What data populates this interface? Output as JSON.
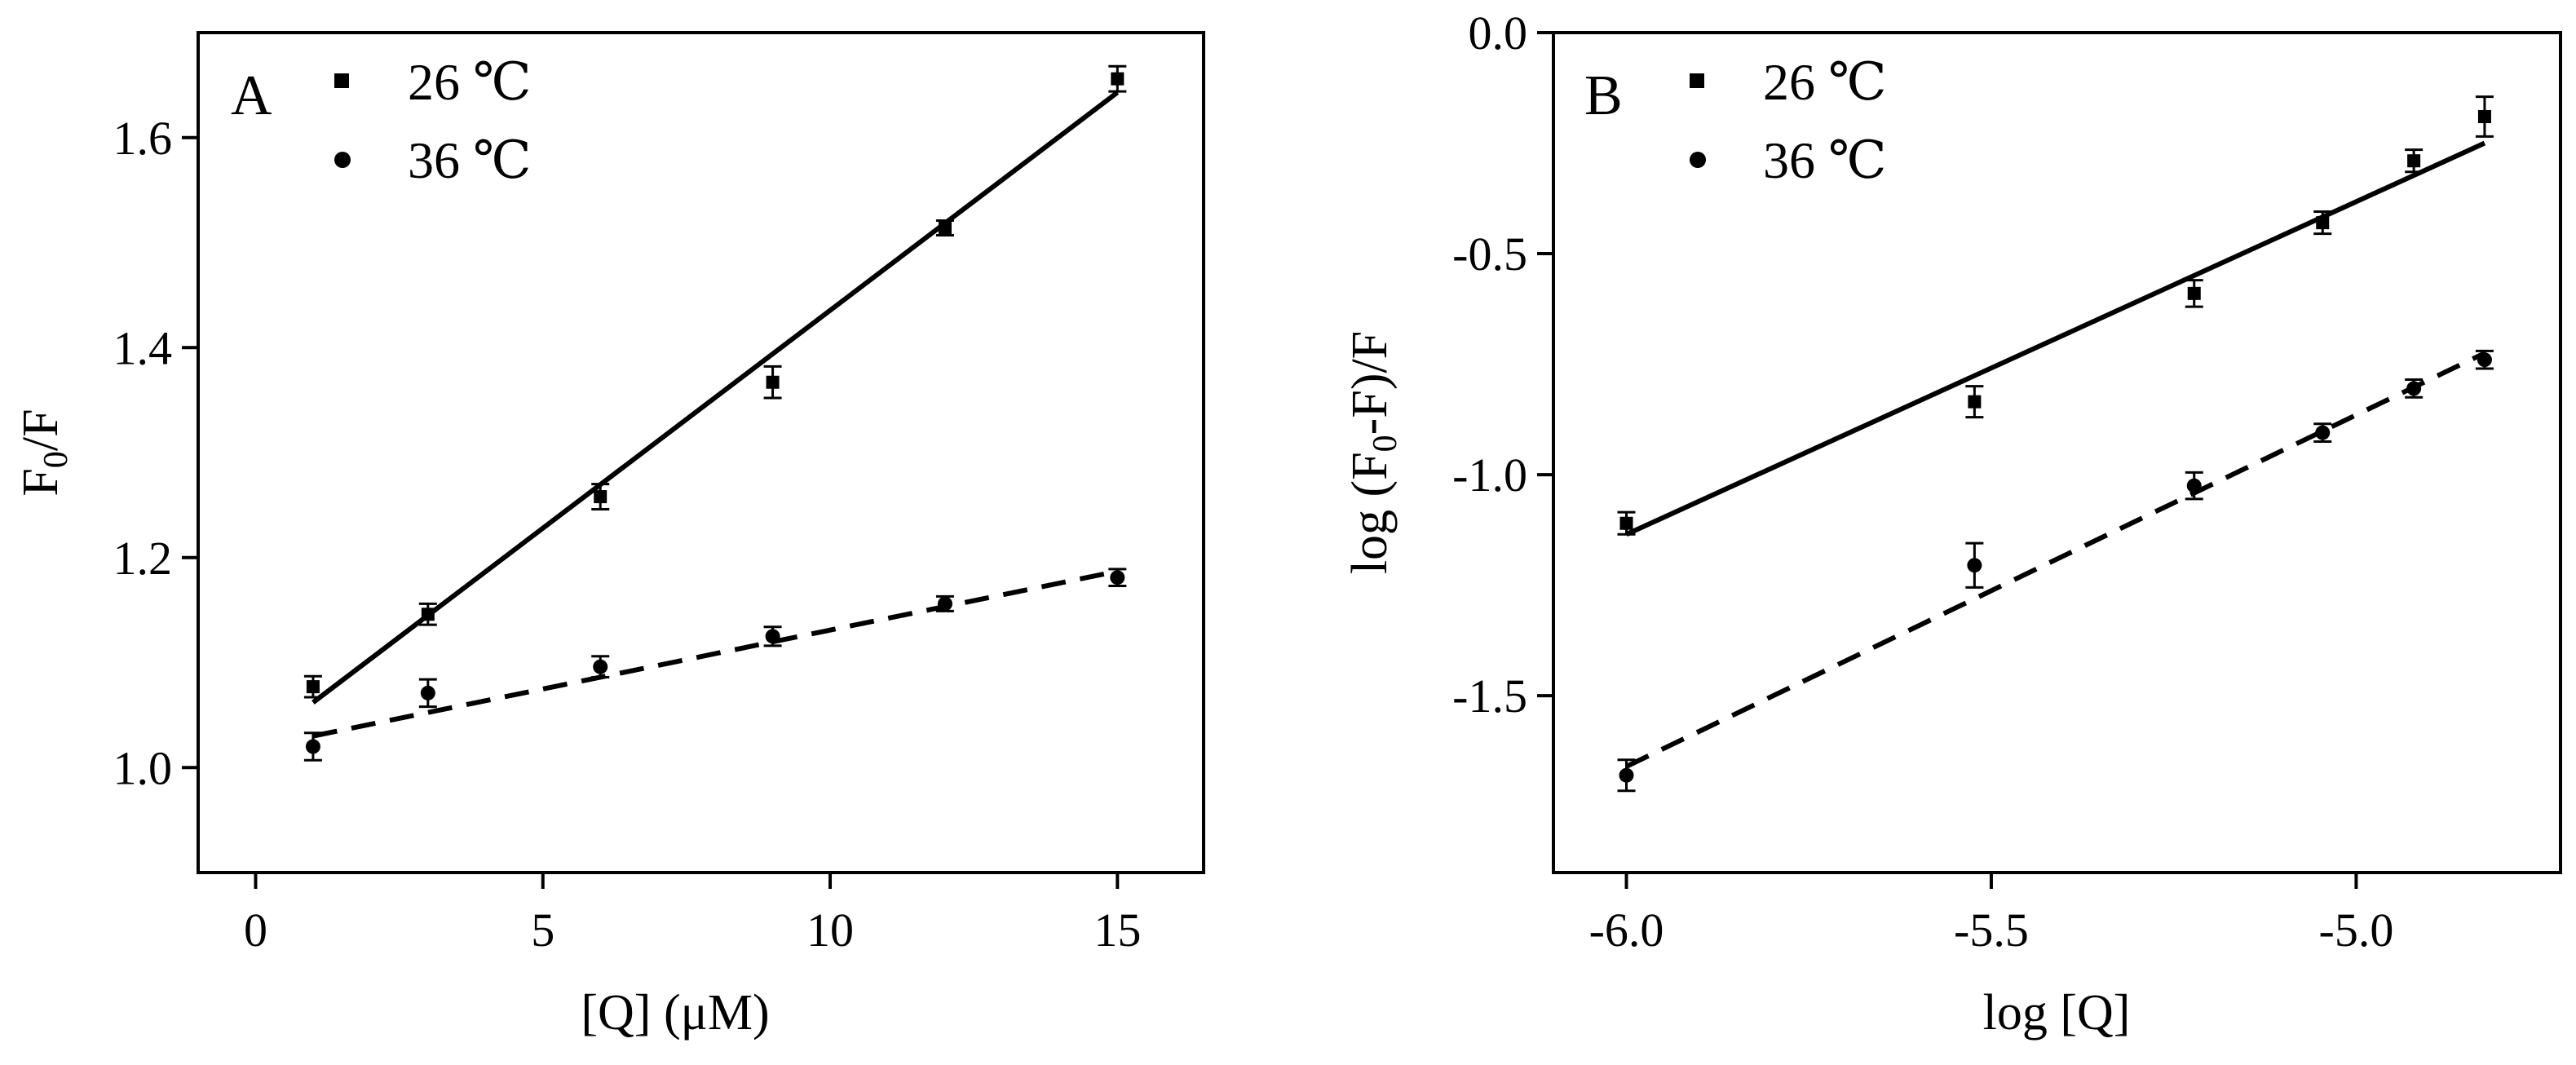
{
  "chart_data": [
    {
      "type": "scatter",
      "panel_label": "A",
      "title": "",
      "xlabel": "[Q] (μM)",
      "ylabel": "F0/F",
      "ylabel_parts": {
        "base": "F",
        "sub": "0",
        "rest": "/F"
      },
      "xlim": [
        -1,
        16.5
      ],
      "ylim": [
        0.9,
        1.7
      ],
      "xticks": [
        0,
        5,
        10,
        15
      ],
      "xtick_labels": [
        "0",
        "5",
        "10",
        "15"
      ],
      "yticks": [
        1.0,
        1.2,
        1.4,
        1.6
      ],
      "ytick_labels": [
        "1.0",
        "1.2",
        "1.4",
        "1.6"
      ],
      "grid": false,
      "legend_position": "top-left",
      "series": [
        {
          "name": "26 ℃",
          "marker": "square",
          "line_style": "solid",
          "x": [
            1,
            3,
            6,
            9,
            12,
            15
          ],
          "y": [
            1.077,
            1.146,
            1.258,
            1.367,
            1.514,
            1.656
          ],
          "err": [
            0.01,
            0.01,
            0.012,
            0.015,
            0.007,
            0.012
          ],
          "fit": {
            "x": [
              1,
              15
            ],
            "y": [
              1.062,
              1.643
            ]
          }
        },
        {
          "name": "36 ℃",
          "marker": "circle",
          "line_style": "dashed",
          "x": [
            1,
            3,
            6,
            9,
            12,
            15
          ],
          "y": [
            1.02,
            1.071,
            1.096,
            1.125,
            1.156,
            1.181
          ],
          "err": [
            0.013,
            0.013,
            0.01,
            0.009,
            0.007,
            0.008
          ],
          "fit": {
            "x": [
              1,
              15
            ],
            "y": [
              1.03,
              1.187
            ]
          }
        }
      ]
    },
    {
      "type": "scatter",
      "panel_label": "B",
      "title": "",
      "xlabel": "log [Q]",
      "ylabel": "log (F0-F)/F",
      "ylabel_parts": {
        "base": "log (F",
        "sub": "0",
        "rest": "-F)/F"
      },
      "xlim": [
        -6.1,
        -4.72
      ],
      "ylim": [
        -1.9,
        0.0
      ],
      "xticks": [
        -6.0,
        -5.5,
        -5.0
      ],
      "xtick_labels": [
        "-6.0",
        "-5.5",
        "-5.0"
      ],
      "yticks": [
        0.0,
        -0.5,
        -1.0,
        -1.5
      ],
      "ytick_labels": [
        "0.0",
        "-0.5",
        "-1.0",
        "-1.5"
      ],
      "grid": false,
      "legend_position": "top-left",
      "series": [
        {
          "name": "26 ℃",
          "marker": "square",
          "line_style": "solid",
          "x": [
            -6.0,
            -5.523,
            -5.222,
            -5.046,
            -4.921,
            -4.824
          ],
          "y": [
            -1.11,
            -0.835,
            -0.59,
            -0.43,
            -0.29,
            -0.19
          ],
          "err": [
            0.025,
            0.035,
            0.03,
            0.025,
            0.025,
            0.045
          ],
          "fit": {
            "x": [
              -6.0,
              -4.824
            ],
            "y": [
              -1.135,
              -0.25
            ]
          }
        },
        {
          "name": "36 ℃",
          "marker": "circle",
          "line_style": "dashed",
          "x": [
            -6.0,
            -5.523,
            -5.222,
            -5.046,
            -4.921,
            -4.824
          ],
          "y": [
            -1.68,
            -1.205,
            -1.025,
            -0.905,
            -0.805,
            -0.74
          ],
          "err": [
            0.035,
            0.05,
            0.03,
            0.02,
            0.02,
            0.02
          ],
          "fit": {
            "x": [
              -6.0,
              -4.824
            ],
            "y": [
              -1.66,
              -0.725
            ]
          }
        }
      ]
    }
  ]
}
